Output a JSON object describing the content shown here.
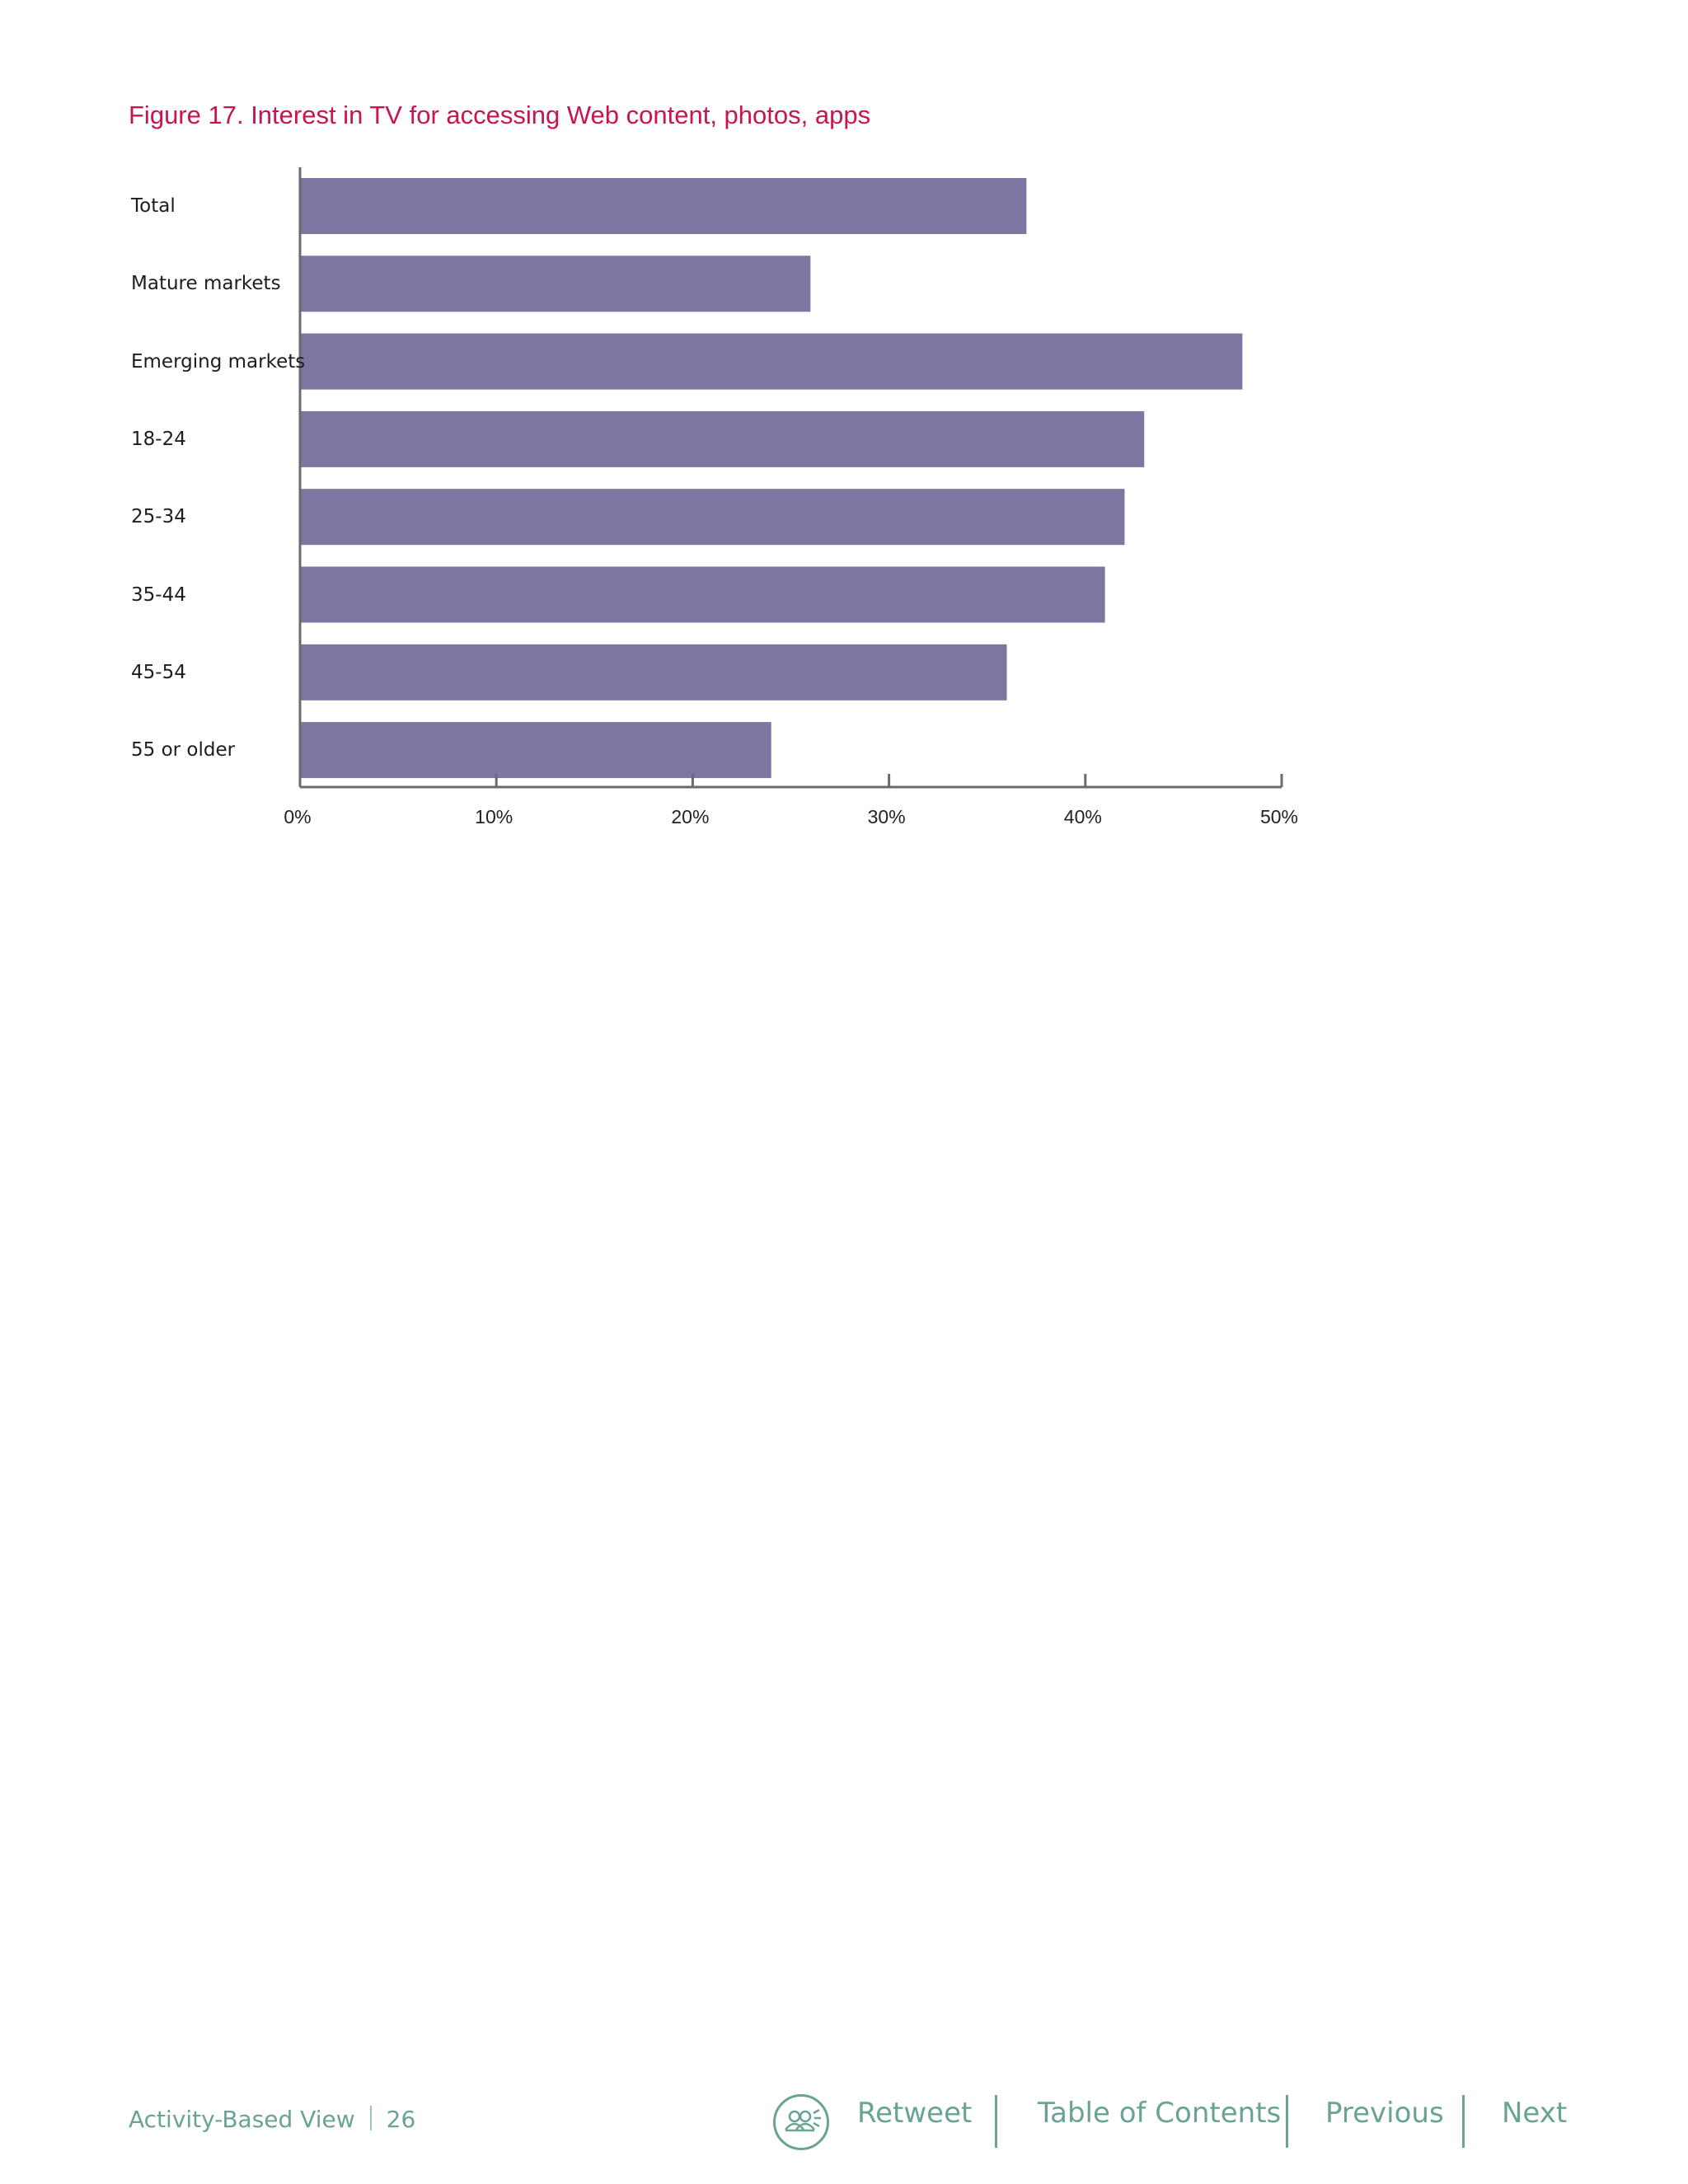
{
  "chart_data": {
    "type": "bar",
    "orientation": "horizontal",
    "title": "Figure 17. Interest in TV for accessing Web content, photos, apps",
    "categories": [
      "Total",
      "Mature markets",
      "Emerging markets",
      "18-24",
      "25-34",
      "35-44",
      "45-54",
      "55 or older"
    ],
    "values": [
      37,
      26,
      48,
      43,
      42,
      41,
      36,
      24
    ],
    "xlim": [
      0,
      50
    ],
    "ticks": [
      0,
      10,
      20,
      30,
      40,
      50
    ],
    "tick_labels": [
      "0%",
      "10%",
      "20%",
      "30%",
      "40%",
      "50%"
    ],
    "xlabel": "",
    "ylabel": "",
    "grid": false,
    "bar_color": "#7b77a0",
    "title_color": "#c8154f"
  },
  "footer": {
    "section": "Activity-Based View",
    "page": "26",
    "retweet": "Retweet",
    "toc": "Table of Contents",
    "previous": "Previous",
    "next": "Next",
    "accent_color": "#6aa394",
    "retweet_icon": "people-group-icon"
  }
}
